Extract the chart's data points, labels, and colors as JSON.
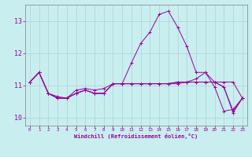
{
  "xlabel": "Windchill (Refroidissement éolien,°C)",
  "background_color": "#c8eef0",
  "grid_color": "#b0d0d0",
  "line_color": "#990099",
  "spine_color": "#808080",
  "xlim": [
    -0.5,
    23.5
  ],
  "ylim": [
    9.75,
    13.5
  ],
  "xticks": [
    0,
    1,
    2,
    3,
    4,
    5,
    6,
    7,
    8,
    9,
    10,
    11,
    12,
    13,
    14,
    15,
    16,
    17,
    18,
    19,
    20,
    21,
    22,
    23
  ],
  "yticks": [
    10,
    11,
    12,
    13
  ],
  "figsize": [
    3.2,
    2.0
  ],
  "dpi": 100,
  "series": [
    [
      11.1,
      11.4,
      10.75,
      10.6,
      10.6,
      10.75,
      10.85,
      10.75,
      10.75,
      11.05,
      11.05,
      11.05,
      11.05,
      11.05,
      11.05,
      11.05,
      11.05,
      11.1,
      11.1,
      11.1,
      11.1,
      11.1,
      11.1,
      10.6
    ],
    [
      11.1,
      11.4,
      10.75,
      10.65,
      10.6,
      10.85,
      10.9,
      10.85,
      10.9,
      11.05,
      11.05,
      11.7,
      12.3,
      12.65,
      13.2,
      13.3,
      12.8,
      12.2,
      11.4,
      11.4,
      11.1,
      10.95,
      10.2,
      10.6
    ],
    [
      11.1,
      11.4,
      10.75,
      10.6,
      10.6,
      10.75,
      10.85,
      10.75,
      10.75,
      11.05,
      11.05,
      11.05,
      11.05,
      11.05,
      11.05,
      11.05,
      11.1,
      11.1,
      11.1,
      11.1,
      11.1,
      10.95,
      10.15,
      10.6
    ],
    [
      11.1,
      11.4,
      10.75,
      10.6,
      10.6,
      10.75,
      10.85,
      10.75,
      10.75,
      11.05,
      11.05,
      11.05,
      11.05,
      11.05,
      11.05,
      11.05,
      11.1,
      11.1,
      11.2,
      11.4,
      10.95,
      10.2,
      10.25,
      10.6
    ]
  ]
}
